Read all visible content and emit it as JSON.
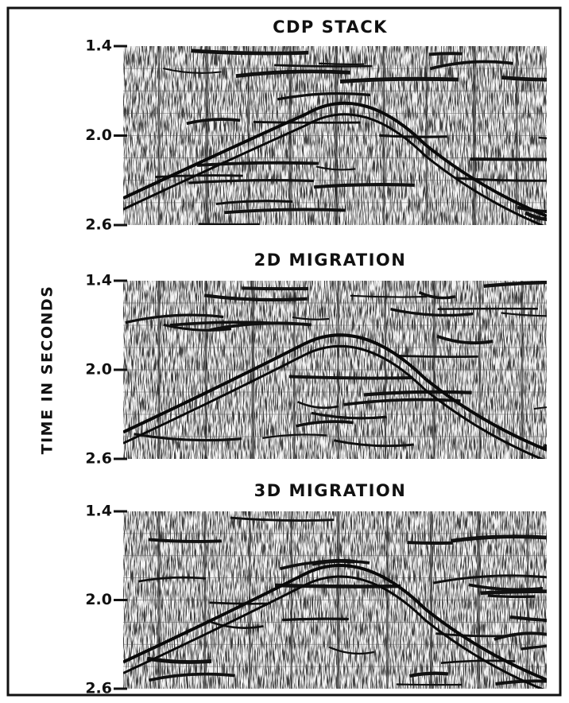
{
  "y_axis_label": "TIME IN SECONDS",
  "panels": [
    {
      "title": "CDP STACK",
      "ticks": [
        "1.4",
        "2.0",
        "2.6"
      ]
    },
    {
      "title": "2D MIGRATION",
      "ticks": [
        "1.4",
        "2.0",
        "2.6"
      ]
    },
    {
      "title": "3D MIGRATION",
      "ticks": [
        "1.4",
        "2.0",
        "2.6"
      ]
    }
  ]
}
